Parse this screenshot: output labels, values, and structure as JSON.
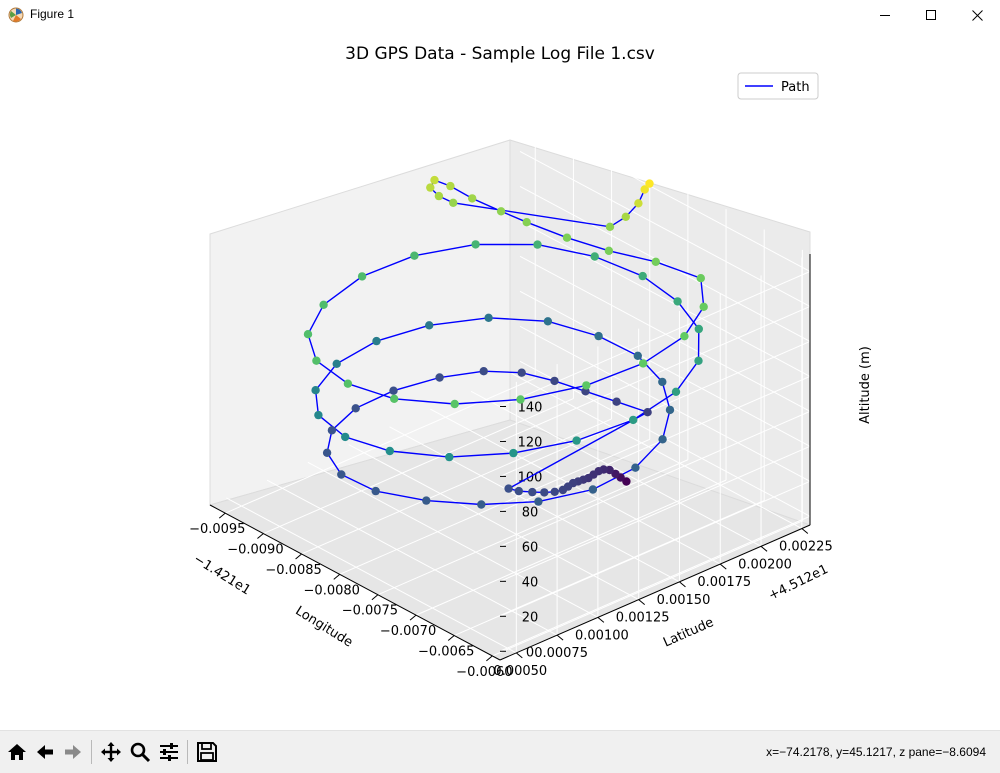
{
  "window": {
    "title": "Figure 1"
  },
  "status": {
    "coords": "x=−74.2178, y=45.1217, z pane=−8.6094"
  },
  "toolbar": {
    "icons": [
      "home-icon",
      "back-icon",
      "forward-icon",
      "pan-icon",
      "zoom-icon",
      "configure-subplots-icon",
      "save-icon"
    ]
  },
  "colors": {
    "path": "#0000ff",
    "viridis": [
      "#440154",
      "#3b528b",
      "#21918c",
      "#5ec962",
      "#fde725"
    ]
  },
  "chart_data": {
    "type": "scatter",
    "projection": "3d",
    "title": "3D GPS Data - Sample Log File 1.csv",
    "xlabel": "Longitude",
    "ylabel": "Latitude",
    "zlabel": "Altitude (m)",
    "x_offset_label": "−1.421e1",
    "y_offset_label": "+4.512e1",
    "xticks": [
      "−0.0095",
      "−0.0090",
      "−0.0085",
      "−0.0080",
      "−0.0075",
      "−0.0070",
      "−0.0065",
      "−0.0060"
    ],
    "yticks": [
      "0.00050",
      "0.00075",
      "0.00100",
      "0.00125",
      "0.00150",
      "0.00175",
      "0.00200",
      "0.00225"
    ],
    "zticks": [
      "0",
      "20",
      "40",
      "60",
      "80",
      "100",
      "120",
      "140"
    ],
    "xlim": [
      -0.0097,
      -0.0059
    ],
    "ylim": [
      0.0004,
      0.0023
    ],
    "zlim": [
      -5,
      150
    ],
    "legend": {
      "label": "Path",
      "position": "top-right"
    },
    "grid": true,
    "colormap": "viridis",
    "approximate": true,
    "points": [
      [
        -0.00745,
        0.0019,
        0
      ],
      [
        -0.00742,
        0.00185,
        5
      ],
      [
        -0.00738,
        0.0018,
        10
      ],
      [
        -0.00735,
        0.00175,
        15
      ],
      [
        -0.00732,
        0.0017,
        18
      ],
      [
        -0.00728,
        0.00165,
        20
      ],
      [
        -0.00724,
        0.0016,
        21
      ],
      [
        -0.0072,
        0.00155,
        22
      ],
      [
        -0.00716,
        0.0015,
        24
      ],
      [
        -0.00712,
        0.00145,
        26
      ],
      [
        -0.00708,
        0.0014,
        28
      ],
      [
        -0.00704,
        0.00135,
        29
      ],
      [
        -0.007,
        0.0013,
        30
      ],
      [
        -0.007,
        0.00125,
        31
      ],
      [
        -0.00703,
        0.0012,
        32
      ],
      [
        -0.00708,
        0.00115,
        33
      ],
      [
        -0.00715,
        0.0011,
        34
      ],
      [
        -0.00722,
        0.00107,
        35
      ],
      [
        -0.0076,
        0.0021,
        28
      ],
      [
        -0.0079,
        0.00205,
        29
      ],
      [
        -0.0082,
        0.002,
        30
      ],
      [
        -0.0085,
        0.00195,
        31
      ],
      [
        -0.00878,
        0.00188,
        32
      ],
      [
        -0.009,
        0.00175,
        33
      ],
      [
        -0.00915,
        0.00155,
        34
      ],
      [
        -0.00922,
        0.0013,
        35
      ],
      [
        -0.00918,
        0.00105,
        36
      ],
      [
        -0.009,
        0.00082,
        37
      ],
      [
        -0.0087,
        0.00065,
        38
      ],
      [
        -0.0083,
        0.00055,
        39
      ],
      [
        -0.00785,
        0.00055,
        40
      ],
      [
        -0.0074,
        0.00065,
        41
      ],
      [
        -0.007,
        0.0008,
        42
      ],
      [
        -0.00668,
        0.001,
        43
      ],
      [
        -0.0065,
        0.00125,
        44
      ],
      [
        -0.00652,
        0.00152,
        45
      ],
      [
        -0.00672,
        0.00178,
        46
      ],
      [
        -0.00705,
        0.00198,
        47
      ],
      [
        -0.00745,
        0.00212,
        48
      ],
      [
        -0.0079,
        0.00218,
        50
      ],
      [
        -0.00835,
        0.00215,
        52
      ],
      [
        -0.0088,
        0.00205,
        54
      ],
      [
        -0.00915,
        0.00185,
        56
      ],
      [
        -0.00935,
        0.00158,
        58
      ],
      [
        -0.0094,
        0.00128,
        60
      ],
      [
        -0.00928,
        0.00098,
        62
      ],
      [
        -0.009,
        0.00072,
        64
      ],
      [
        -0.0086,
        0.00055,
        66
      ],
      [
        -0.0081,
        0.00048,
        68
      ],
      [
        -0.0076,
        0.00052,
        70
      ],
      [
        -0.00712,
        0.00066,
        72
      ],
      [
        -0.00675,
        0.00088,
        74
      ],
      [
        -0.0065,
        0.00115,
        76
      ],
      [
        -0.0064,
        0.00145,
        78
      ],
      [
        -0.00648,
        0.00175,
        80
      ],
      [
        -0.00672,
        0.002,
        82
      ],
      [
        -0.0071,
        0.00218,
        84
      ],
      [
        -0.00755,
        0.00226,
        86
      ],
      [
        -0.00805,
        0.00228,
        88
      ],
      [
        -0.00855,
        0.00222,
        90
      ],
      [
        -0.009,
        0.00208,
        92
      ],
      [
        -0.00932,
        0.00185,
        94
      ],
      [
        -0.00948,
        0.00155,
        96
      ],
      [
        -0.00946,
        0.00122,
        98
      ],
      [
        -0.00928,
        0.0009,
        99
      ],
      [
        -0.00895,
        0.00065,
        100
      ],
      [
        -0.00852,
        0.0005,
        101
      ],
      [
        -0.008,
        0.00045,
        102
      ],
      [
        -0.0075,
        0.0005,
        103
      ],
      [
        -0.00705,
        0.00066,
        104
      ],
      [
        -0.0067,
        0.0009,
        105
      ],
      [
        -0.00648,
        0.0012,
        106
      ],
      [
        -0.00642,
        0.00152,
        107
      ],
      [
        -0.00652,
        0.00182,
        108
      ],
      [
        -0.00678,
        0.00206,
        109
      ],
      [
        -0.00716,
        0.00222,
        110
      ],
      [
        -0.0076,
        0.00215,
        112
      ],
      [
        -0.008,
        0.00205,
        113
      ],
      [
        -0.0084,
        0.00198,
        114
      ],
      [
        -0.0088,
        0.00192,
        116
      ],
      [
        -0.00905,
        0.00188,
        118
      ],
      [
        -0.0093,
        0.00182,
        122
      ],
      [
        -0.0095,
        0.00178,
        126
      ],
      [
        -0.00958,
        0.00172,
        130
      ],
      [
        -0.00955,
        0.00168,
        128
      ],
      [
        -0.00948,
        0.0017,
        124
      ],
      [
        -0.0094,
        0.00175,
        120
      ],
      [
        -0.0082,
        0.00215,
        118
      ],
      [
        -0.0081,
        0.0022,
        124
      ],
      [
        -0.00802,
        0.00224,
        132
      ],
      [
        -0.00798,
        0.00226,
        140
      ],
      [
        -0.00796,
        0.00228,
        143
      ]
    ]
  }
}
